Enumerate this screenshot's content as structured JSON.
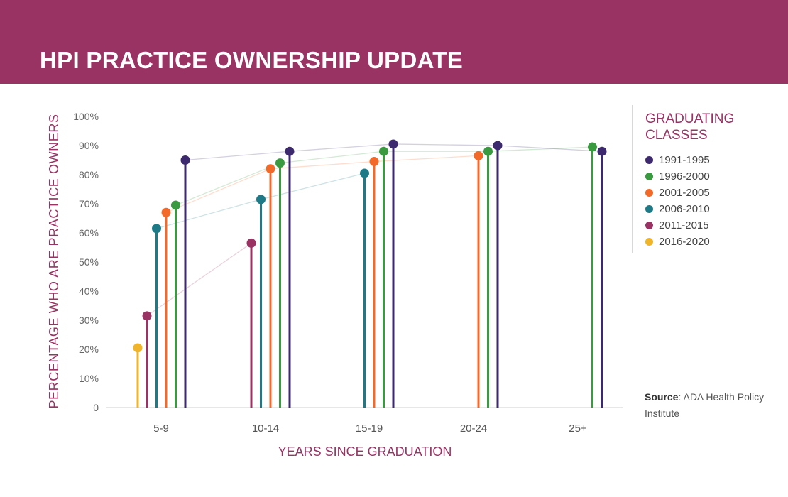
{
  "banner": {
    "title": "HPI PRACTICE OWNERSHIP UPDATE"
  },
  "source": {
    "label": "Source",
    "text": ": ADA Health Policy Institute"
  },
  "chart_data": {
    "type": "line",
    "title": "HPI PRACTICE OWNERSHIP UPDATE",
    "xlabel": "YEARS SINCE GRADUATION",
    "ylabel": "PERCENTAGE WHO ARE PRACTICE OWNERS",
    "categories": [
      "5-9",
      "10-14",
      "15-19",
      "20-24",
      "25+"
    ],
    "ylim": [
      0,
      100
    ],
    "yticks": [
      "0",
      "10%",
      "20%",
      "30%",
      "40%",
      "50%",
      "60%",
      "70%",
      "80%",
      "90%",
      "100%"
    ],
    "legend_title": "GRADUATING CLASSES",
    "legend_position": "right",
    "grid": false,
    "series": [
      {
        "name": "1991-1995",
        "color": "#3d2a6e",
        "values": [
          85,
          88,
          90.5,
          90,
          88
        ]
      },
      {
        "name": "1996-2000",
        "color": "#3a9a3f",
        "values": [
          69.5,
          84,
          88,
          88,
          89.5
        ]
      },
      {
        "name": "2001-2005",
        "color": "#f26a2a",
        "values": [
          67,
          82,
          84.5,
          86.5,
          null
        ]
      },
      {
        "name": "2006-2010",
        "color": "#1d7a86",
        "values": [
          61.5,
          71.5,
          80.5,
          null,
          null
        ]
      },
      {
        "name": "2011-2015",
        "color": "#983363",
        "values": [
          31.5,
          56.5,
          null,
          null,
          null
        ]
      },
      {
        "name": "2016-2020",
        "color": "#f0b42a",
        "values": [
          20.5,
          null,
          null,
          null,
          null
        ]
      }
    ]
  }
}
